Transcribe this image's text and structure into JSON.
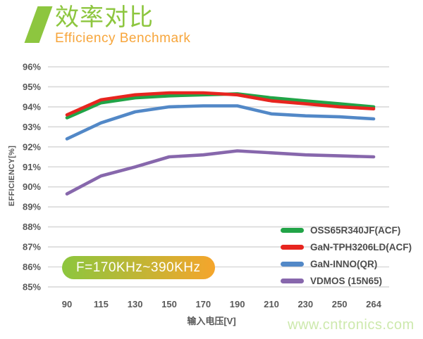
{
  "header": {
    "title_cn": "效率对比",
    "subtitle_en": "Efficiency Benchmark",
    "title_color": "#8dc63f",
    "subtitle_color": "#f7a63c"
  },
  "chart_data": {
    "type": "line",
    "title": "效率对比 / Efficiency Benchmark",
    "xlabel": "输入电压[V]",
    "ylabel": "EFFICIENCY[%]",
    "categories": [
      "90",
      "115",
      "130",
      "150",
      "170",
      "190",
      "210",
      "230",
      "250",
      "264"
    ],
    "series": [
      {
        "name": "OSS65R340JF(ACF)",
        "color": "#21a447",
        "values": [
          93.45,
          94.2,
          94.45,
          94.55,
          94.6,
          94.65,
          94.45,
          94.3,
          94.15,
          94.0
        ]
      },
      {
        "name": "GaN-TPH3206LD(ACF)",
        "color": "#e7251f",
        "values": [
          93.6,
          94.35,
          94.6,
          94.7,
          94.7,
          94.6,
          94.3,
          94.15,
          94.0,
          93.9
        ]
      },
      {
        "name": "GaN-INNO(QR)",
        "color": "#5288c7",
        "values": [
          92.4,
          93.2,
          93.75,
          94.0,
          94.05,
          94.05,
          93.65,
          93.55,
          93.5,
          93.4
        ]
      },
      {
        "name": "VDMOS (15N65)",
        "color": "#8767ac",
        "values": [
          89.65,
          90.55,
          91.0,
          91.5,
          91.6,
          91.8,
          91.7,
          91.6,
          91.55,
          91.5
        ]
      }
    ],
    "ylim": [
      85,
      96
    ],
    "y_tick_step": 1,
    "y_tick_suffix": "%",
    "grid": "horizontal-only",
    "legend_position": "inside-bottom-right",
    "annotation": "F=170KHz~390KHz"
  },
  "watermark": "www.cntronics.com",
  "colors": {
    "gridline": "#d9d9d9",
    "tick_text": "#595959",
    "legend_text": "#4d4d4d",
    "badge_gradient_start": "#8cc63e",
    "badge_gradient_end": "#f5a52c"
  }
}
